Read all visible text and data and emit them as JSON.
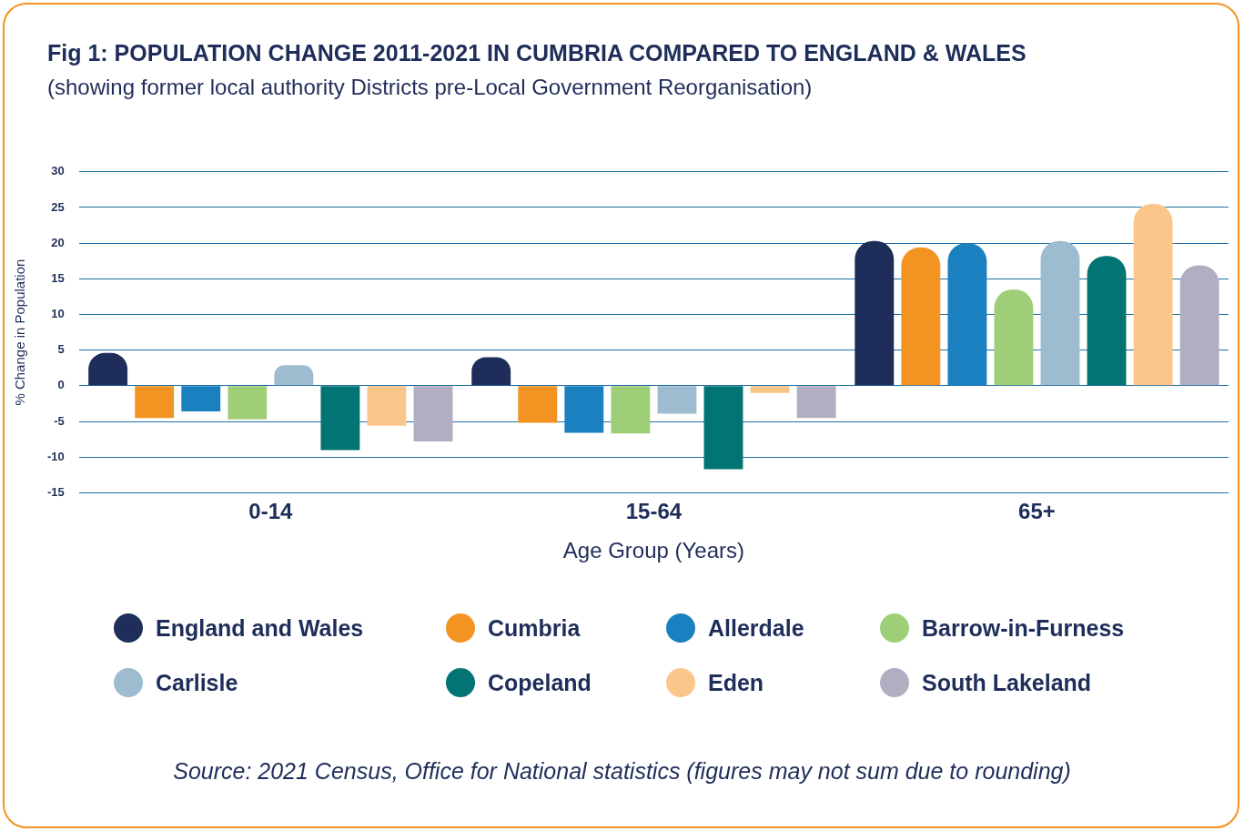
{
  "chart_data": {
    "type": "bar",
    "title": "Fig 1: POPULATION CHANGE 2011-2021 IN CUMBRIA COMPARED TO ENGLAND & WALES",
    "subtitle": "(showing former local authority Districts pre-Local Government Reorganisation)",
    "xlabel": "Age Group (Years)",
    "ylabel": "% Change in Population",
    "categories": [
      "0-14",
      "15-64",
      "65+"
    ],
    "series": [
      {
        "name": "England and Wales",
        "color": "#1e2d59",
        "values": [
          4.6,
          4.0,
          20.3
        ]
      },
      {
        "name": "Cumbria",
        "color": "#f39322",
        "values": [
          -4.5,
          -5.2,
          19.4
        ]
      },
      {
        "name": "Allerdale",
        "color": "#1a80c0",
        "values": [
          -3.6,
          -6.6,
          20.0
        ]
      },
      {
        "name": "Barrow-in-Furness",
        "color": "#9ecf78",
        "values": [
          -4.7,
          -6.7,
          13.5
        ]
      },
      {
        "name": "Carlisle",
        "color": "#9dbccf",
        "values": [
          2.9,
          -3.9,
          20.3
        ]
      },
      {
        "name": "Copeland",
        "color": "#027474",
        "values": [
          -9.0,
          -11.7,
          18.2
        ]
      },
      {
        "name": "Eden",
        "color": "#fbc68a",
        "values": [
          -5.6,
          -1.0,
          25.5
        ]
      },
      {
        "name": "South Lakeland",
        "color": "#b1aec1",
        "values": [
          -7.8,
          -4.5,
          16.9
        ]
      }
    ],
    "ylim": [
      -15,
      30
    ],
    "yticks": [
      -15,
      -10,
      -5,
      0,
      5,
      10,
      15,
      20,
      25,
      30
    ],
    "grid": "y",
    "legend": "bottom",
    "annotations": [
      "Source: 2021 Census, Office for National statistics (figures may not sum due to rounding)"
    ]
  }
}
